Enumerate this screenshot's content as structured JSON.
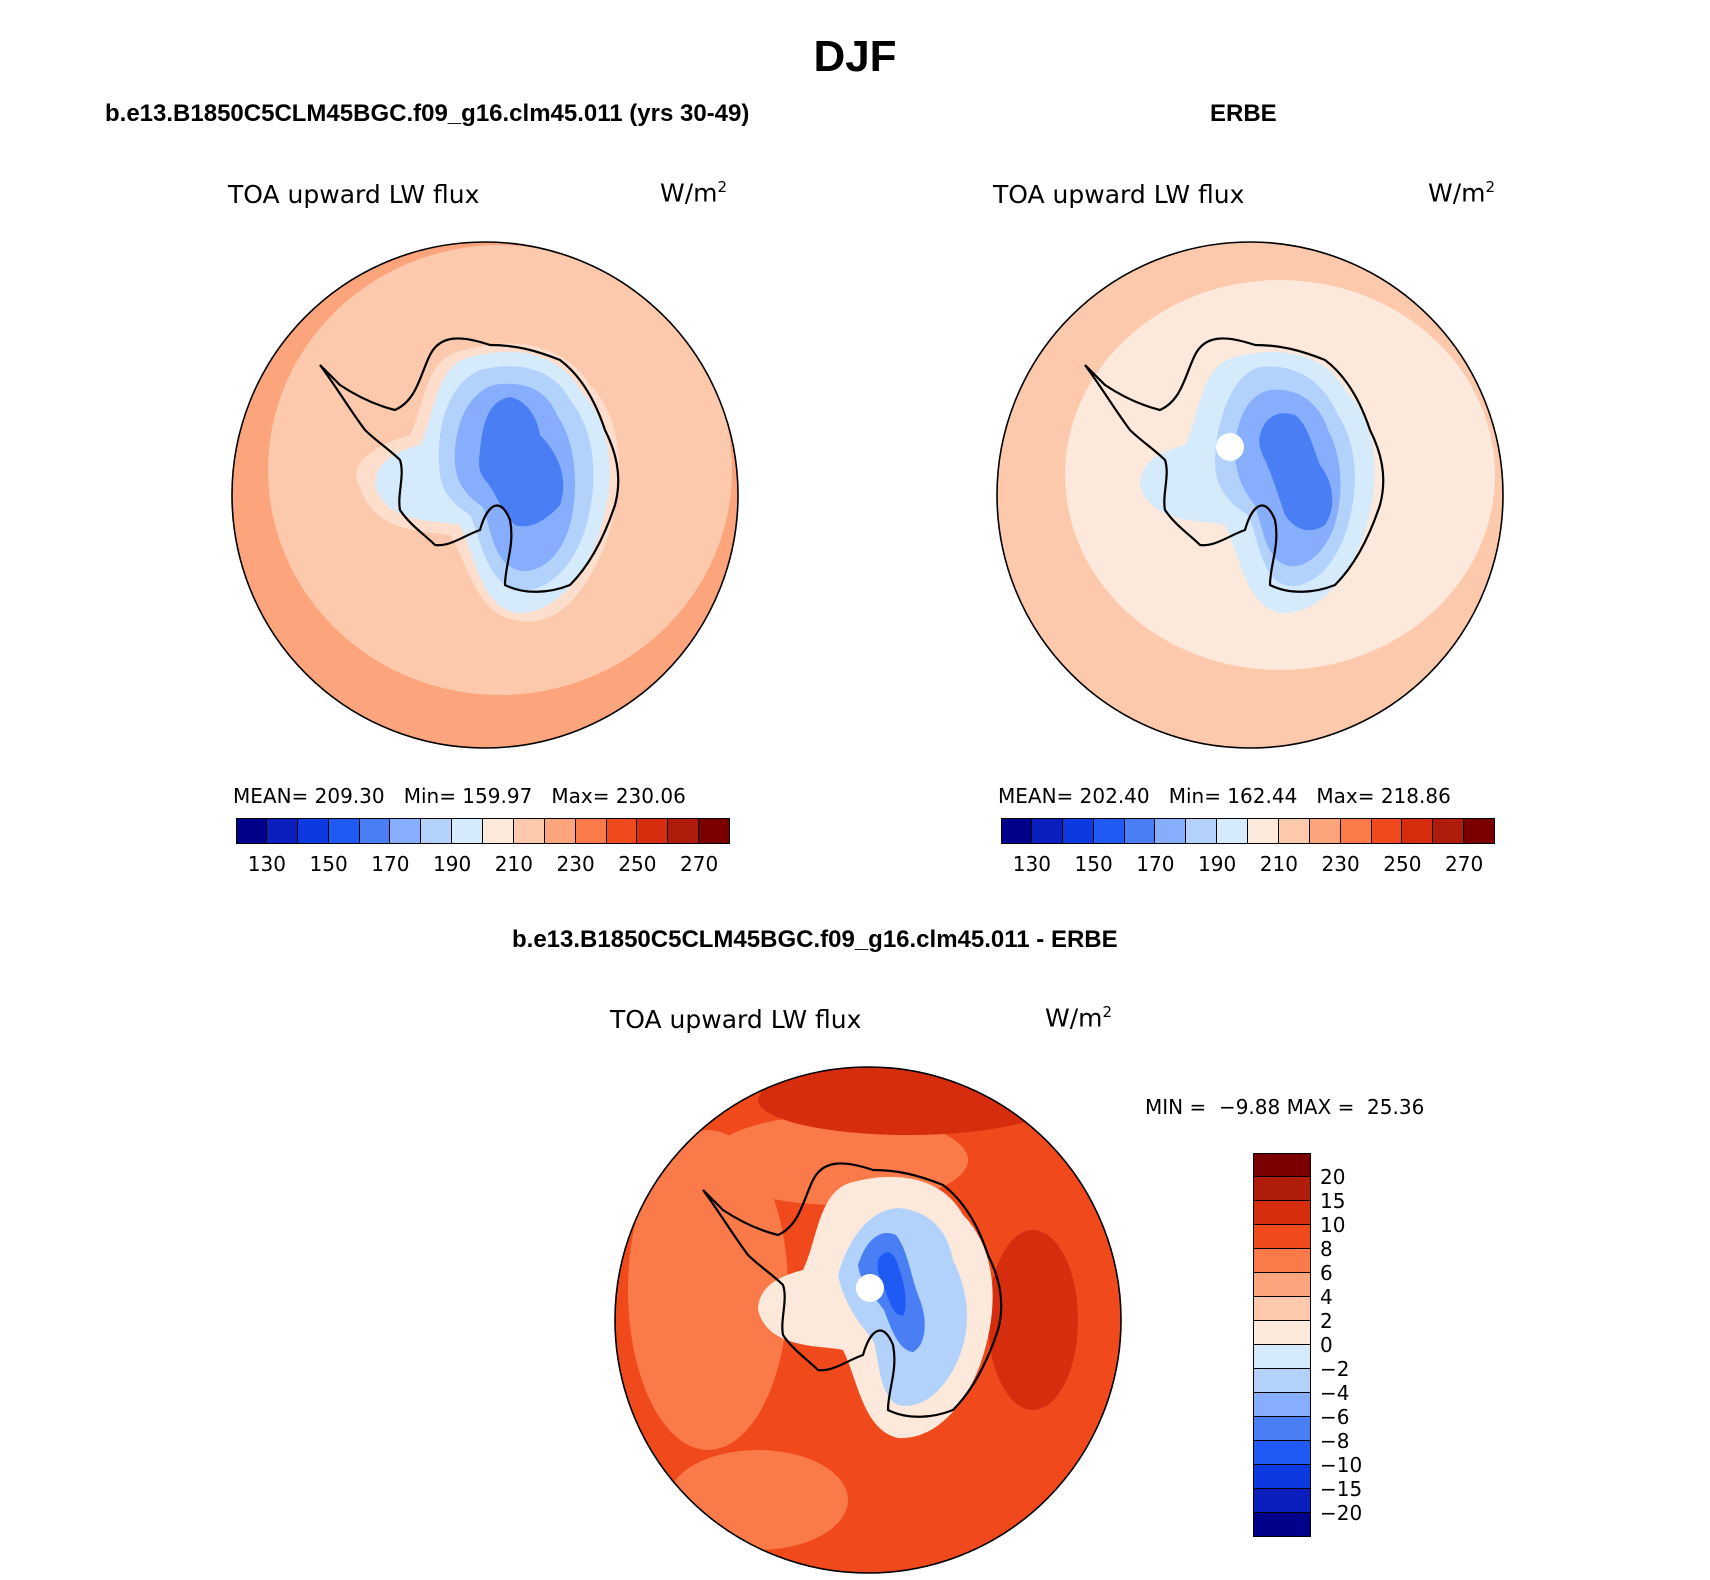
{
  "title": "DJF",
  "panels": [
    {
      "heading": "b.e13.B1850C5CLM45BGC.f09_g16.clm45.011 (yrs 30-49)",
      "variable": "TOA upward LW flux",
      "units_base": "W/m",
      "units_exp": "2",
      "stats": "MEAN= 209.30   Min= 159.97   Max= 230.06",
      "fields": {
        "ocean": "#fcc9ad",
        "ocean_edge": "#fca47c",
        "coast_ring": "#fdddcc",
        "land_outer": "#d5eafb",
        "land_mid": "#b3d2fb",
        "land_inner": "#87aefc",
        "land_core": "#4a7ef5"
      }
    },
    {
      "heading": "ERBE",
      "variable": "TOA upward LW flux",
      "units_base": "W/m",
      "units_exp": "2",
      "stats": "MEAN= 202.40   Min= 162.44   Max= 218.86",
      "fields": {
        "ocean": "#fde9dc",
        "ocean_edge": "#fcc9ad",
        "coast_ring": "#fde9dc",
        "land_outer": "#d5eafb",
        "land_mid": "#b3d2fb",
        "land_inner": "#87aefc",
        "land_core": "#4a7ef5"
      }
    }
  ],
  "colorbar_top": {
    "colors": [
      "#00008b",
      "#0a1fbd",
      "#0d3ae0",
      "#1f5af5",
      "#4a7ef5",
      "#87aefc",
      "#b3d2fb",
      "#d5eafb",
      "#fde9dc",
      "#fcc9ad",
      "#fca47c",
      "#fb7a4a",
      "#f0491b",
      "#d62d0f",
      "#b01c0c",
      "#7a0000"
    ],
    "labels": [
      "130",
      "150",
      "170",
      "190",
      "210",
      "230",
      "250",
      "270"
    ]
  },
  "diff": {
    "heading": "b.e13.B1850C5CLM45BGC.f09_g16.clm45.011 - ERBE",
    "variable": "TOA upward LW flux",
    "units_base": "W/m",
    "units_exp": "2",
    "minmax": "MIN =  −9.88 MAX =  25.36",
    "fields": {
      "ocean": "#f0491b",
      "ocean_edge": "#fb7a4a",
      "warm_patch": "#d62d0f",
      "land_outer": "#fde9dc",
      "land_mid": "#b3d2fb",
      "land_inner": "#4a7ef5",
      "land_core": "#1f5af5"
    }
  },
  "colorbar_side": {
    "colors": [
      "#7a0000",
      "#b01c0c",
      "#d62d0f",
      "#f0491b",
      "#fb7a4a",
      "#fca47c",
      "#fcc9ad",
      "#fde9dc",
      "#d5eafb",
      "#b3d2fb",
      "#87aefc",
      "#4a7ef5",
      "#1f5af5",
      "#0d3ae0",
      "#0a1fbd",
      "#00008b"
    ],
    "labels": [
      "20",
      "15",
      "10",
      "8",
      "6",
      "4",
      "2",
      "0",
      "−2",
      "−4",
      "−6",
      "−8",
      "−10",
      "−15",
      "−20"
    ]
  }
}
